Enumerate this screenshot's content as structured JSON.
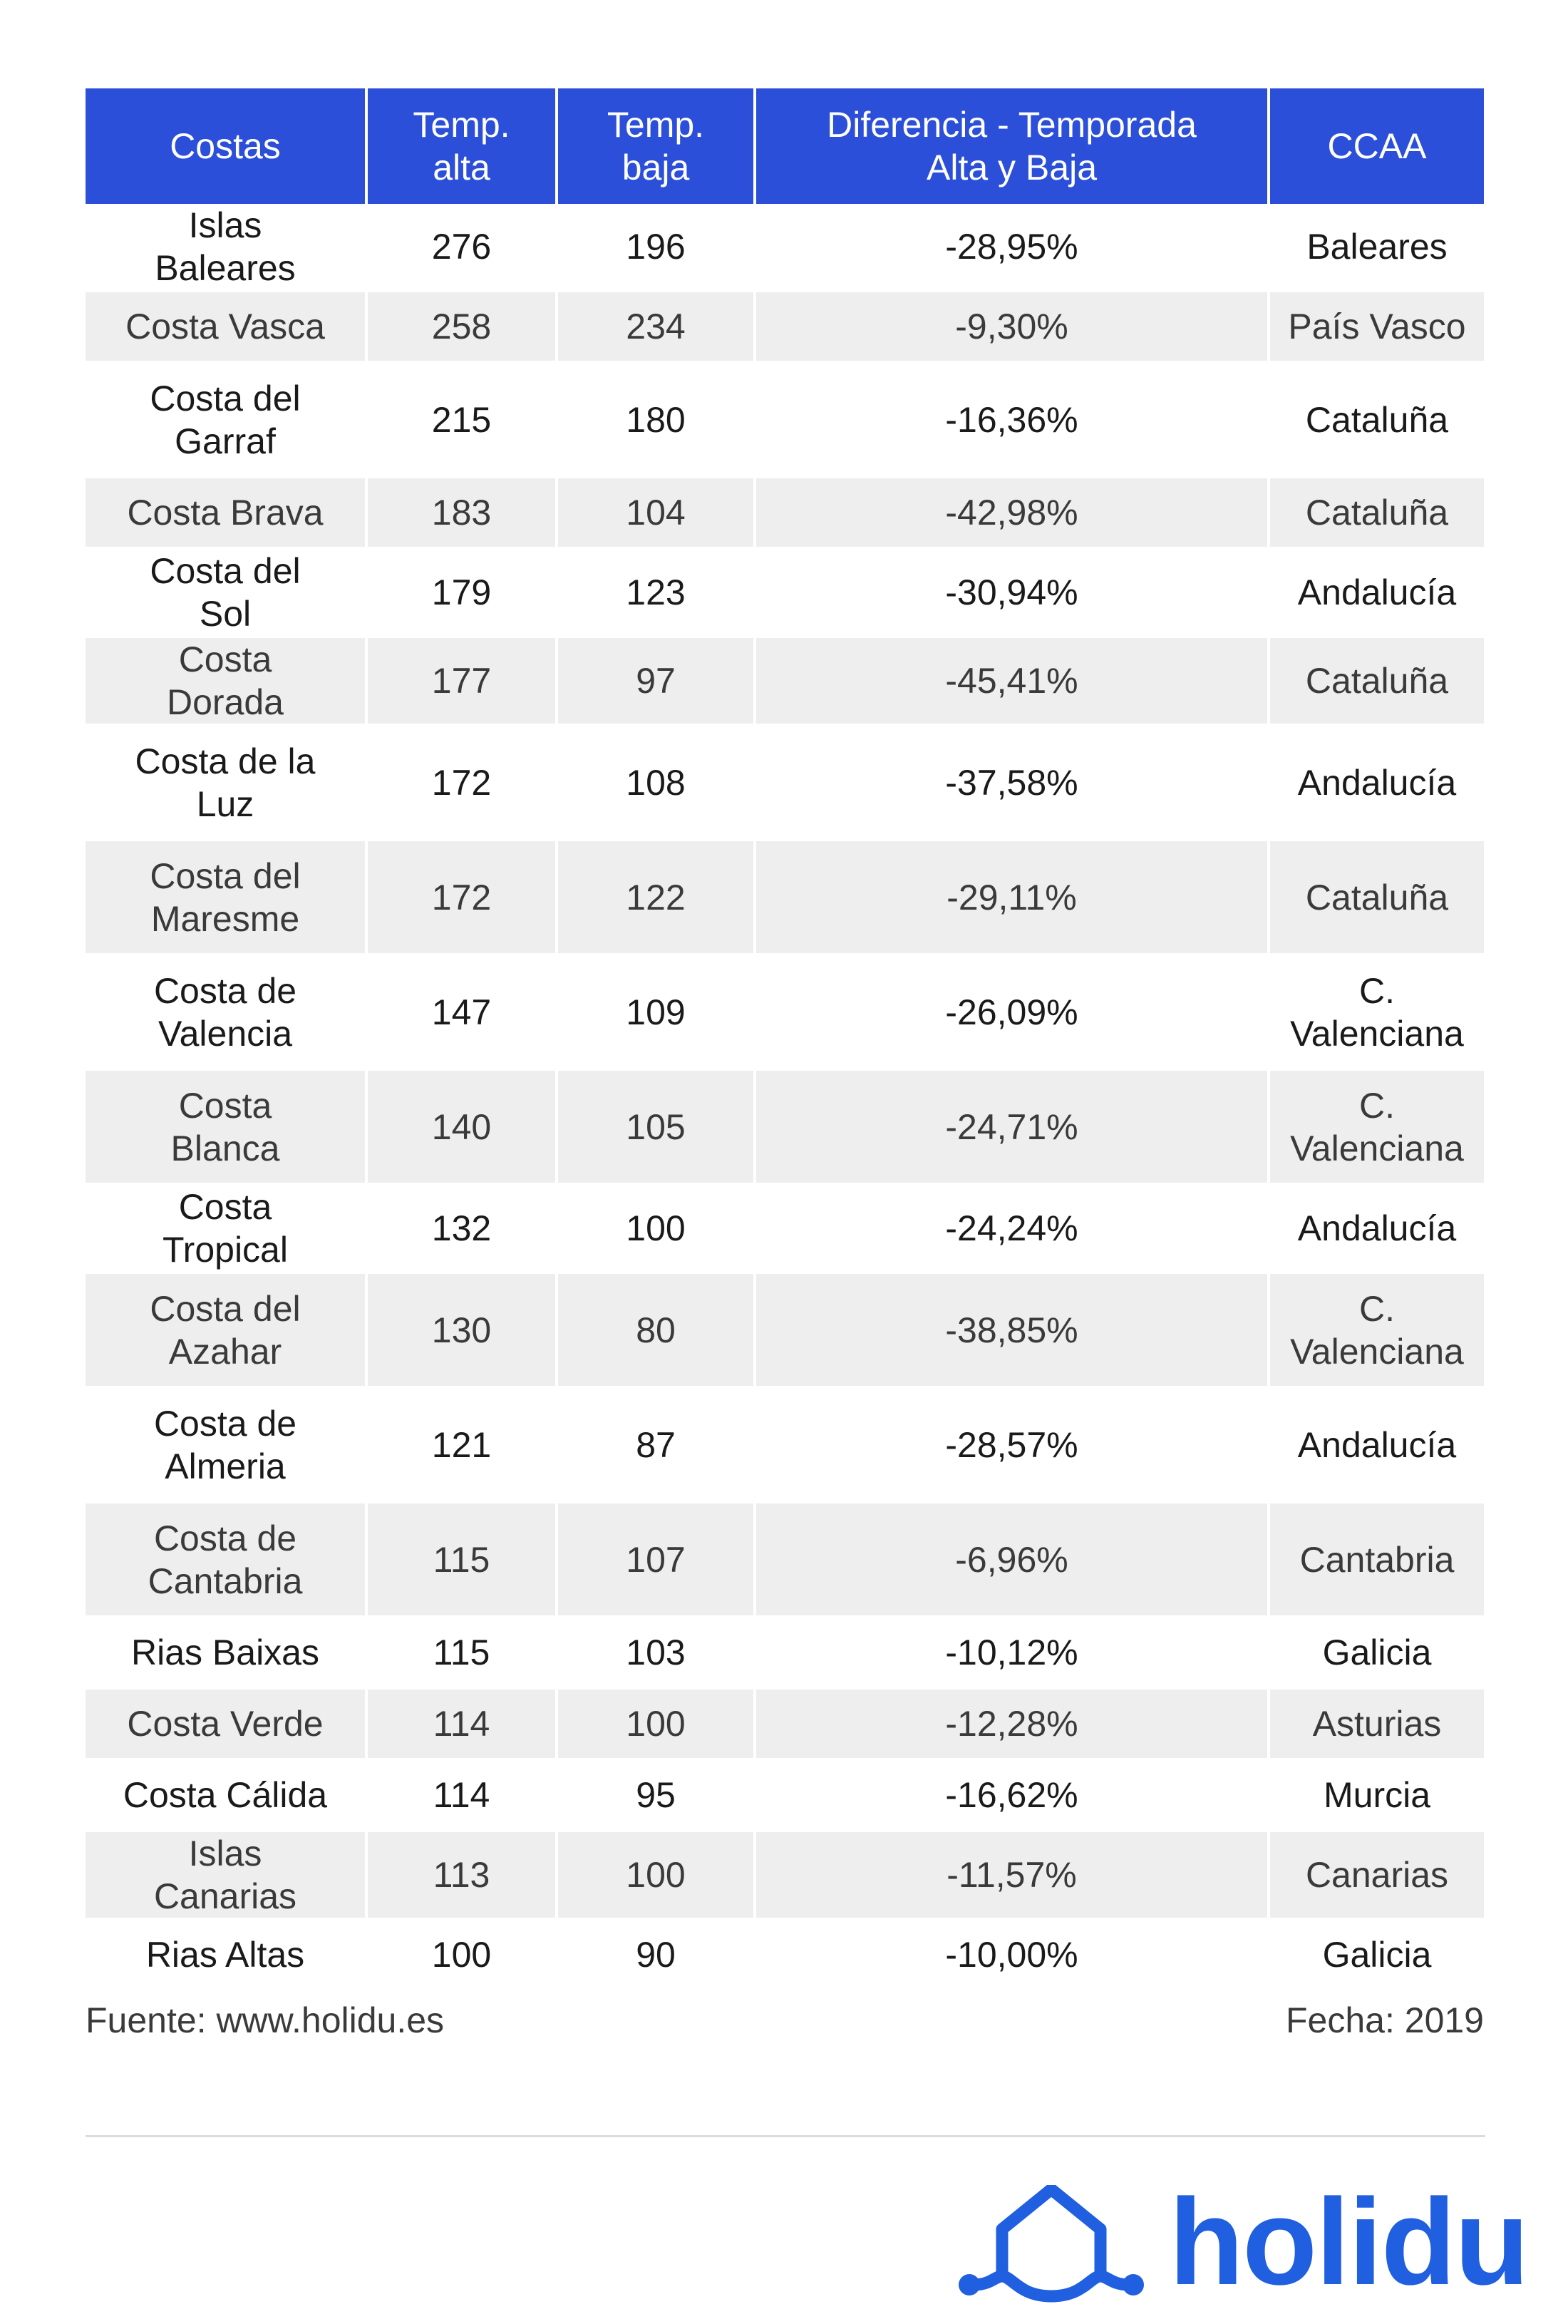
{
  "chart_data": {
    "type": "table",
    "columns": [
      "Costas",
      "Temp. alta",
      "Temp. baja",
      "Diferencia - Temporada Alta y Baja",
      "CCAA"
    ],
    "rows": [
      [
        "Islas Baleares",
        "276",
        "196",
        "-28,95%",
        "Baleares"
      ],
      [
        "Costa Vasca",
        "258",
        "234",
        "-9,30%",
        "País Vasco"
      ],
      [
        "Costa del Garraf",
        "215",
        "180",
        "-16,36%",
        "Cataluña"
      ],
      [
        "Costa Brava",
        "183",
        "104",
        "-42,98%",
        "Cataluña"
      ],
      [
        "Costa del Sol",
        "179",
        "123",
        "-30,94%",
        "Andalucía"
      ],
      [
        "Costa Dorada",
        "177",
        "97",
        "-45,41%",
        "Cataluña"
      ],
      [
        "Costa de la Luz",
        "172",
        "108",
        "-37,58%",
        "Andalucía"
      ],
      [
        "Costa del Maresme",
        "172",
        "122",
        "-29,11%",
        "Cataluña"
      ],
      [
        "Costa de Valencia",
        "147",
        "109",
        "-26,09%",
        "C. Valenciana"
      ],
      [
        "Costa Blanca",
        "140",
        "105",
        "-24,71%",
        "C. Valenciana"
      ],
      [
        "Costa Tropical",
        "132",
        "100",
        "-24,24%",
        "Andalucía"
      ],
      [
        "Costa del Azahar",
        "130",
        "80",
        "-38,85%",
        "C. Valenciana"
      ],
      [
        "Costa de Almeria",
        "121",
        "87",
        "-28,57%",
        "Andalucía"
      ],
      [
        "Costa de Cantabria",
        "115",
        "107",
        "-6,96%",
        "Cantabria"
      ],
      [
        "Rias Baixas",
        "115",
        "103",
        "-10,12%",
        "Galicia"
      ],
      [
        "Costa Verde",
        "114",
        "100",
        "-12,28%",
        "Asturias"
      ],
      [
        "Costa Cálida",
        "114",
        "95",
        "-16,62%",
        "Murcia"
      ],
      [
        "Islas Canarias",
        "113",
        "100",
        "-11,57%",
        "Canarias"
      ],
      [
        "Rias Altas",
        "100",
        "90",
        "-10,00%",
        "Galicia"
      ]
    ]
  },
  "footer": {
    "source": "Fuente: www.holidu.es",
    "date": "Fecha: 2019"
  },
  "logo": {
    "text": "holidu",
    "icon": "house-wave-icon"
  },
  "colors": {
    "header_bg": "#2b4fd8",
    "stripe_bg": "#eeeeee",
    "brand": "#1f5fe0"
  }
}
